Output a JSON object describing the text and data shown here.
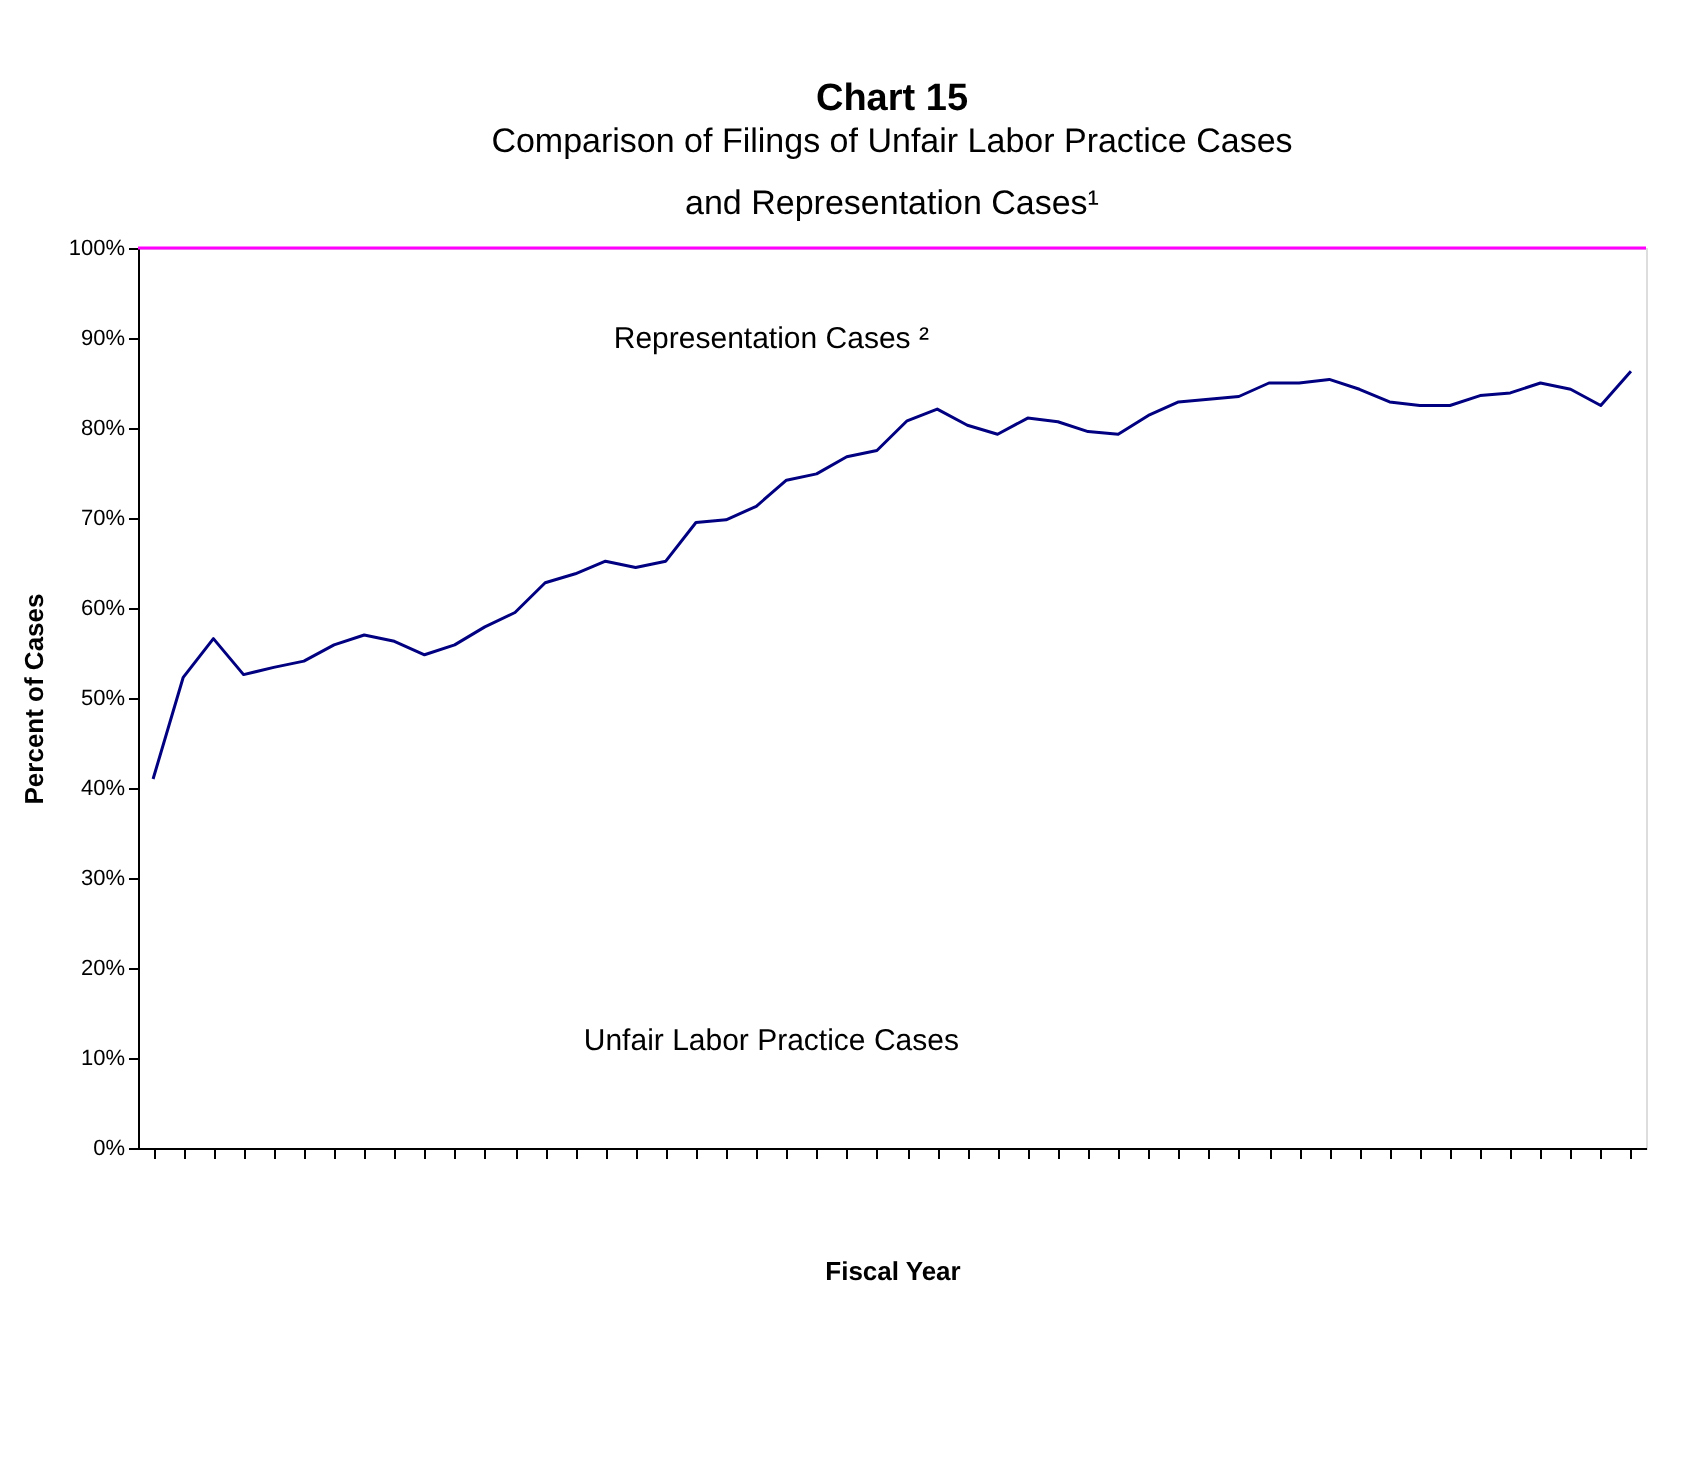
{
  "chart_data": {
    "type": "line",
    "title": "Chart 15",
    "subtitle": [
      "Comparison of Filings of Unfair Labor Practice Cases",
      "and Representation Cases¹"
    ],
    "xlabel": "Fiscal Year",
    "ylabel": "Percent of Cases",
    "categories": [
      null,
      null,
      null,
      null,
      null,
      null,
      null,
      null,
      null,
      null,
      null,
      null,
      null,
      null,
      null,
      null,
      null,
      null,
      null,
      null,
      null,
      null,
      null,
      null,
      null,
      null,
      null,
      null,
      null,
      null,
      null,
      null,
      null,
      null,
      null,
      null,
      null,
      null,
      null,
      null,
      null,
      null,
      null,
      null,
      null,
      null,
      null,
      null,
      null,
      null
    ],
    "series": [
      {
        "color": "#000080",
        "values": [
          41.0,
          52.3,
          56.6,
          52.6,
          53.4,
          54.1,
          55.9,
          57.0,
          56.3,
          54.8,
          55.9,
          57.9,
          59.5,
          62.8,
          63.8,
          65.2,
          64.5,
          65.2,
          69.5,
          69.8,
          71.3,
          74.2,
          74.9,
          76.8,
          77.5,
          80.8,
          82.1,
          80.3,
          79.3,
          81.1,
          80.7,
          79.6,
          79.3,
          81.4,
          82.9,
          83.2,
          83.5,
          85.0,
          85.0,
          85.4,
          84.3,
          82.9,
          82.5,
          82.5,
          83.6,
          83.9,
          85.0,
          84.3,
          82.5,
          86.3
        ]
      }
    ],
    "ylim": [
      0,
      100
    ],
    "yticks": [
      {
        "value": 0,
        "label": "0%"
      },
      {
        "value": 10,
        "label": "10%"
      },
      {
        "value": 20,
        "label": "20%"
      },
      {
        "value": 30,
        "label": "30%"
      },
      {
        "value": 40,
        "label": "40%"
      },
      {
        "value": 50,
        "label": "50%"
      },
      {
        "value": 60,
        "label": "60%"
      },
      {
        "value": 70,
        "label": "70%"
      },
      {
        "value": 80,
        "label": "80%"
      },
      {
        "value": 90,
        "label": "90%"
      },
      {
        "value": 100,
        "label": "100%"
      }
    ],
    "ref_lines": [
      {
        "axis": "y",
        "value": 100,
        "color": "#ff00ff"
      }
    ],
    "annotations": [
      "Representation Cases ²",
      "Unfair Labor Practice Cases"
    ],
    "tick_labels": "y",
    "grid": false,
    "marker": "none",
    "line_style": "solid"
  }
}
